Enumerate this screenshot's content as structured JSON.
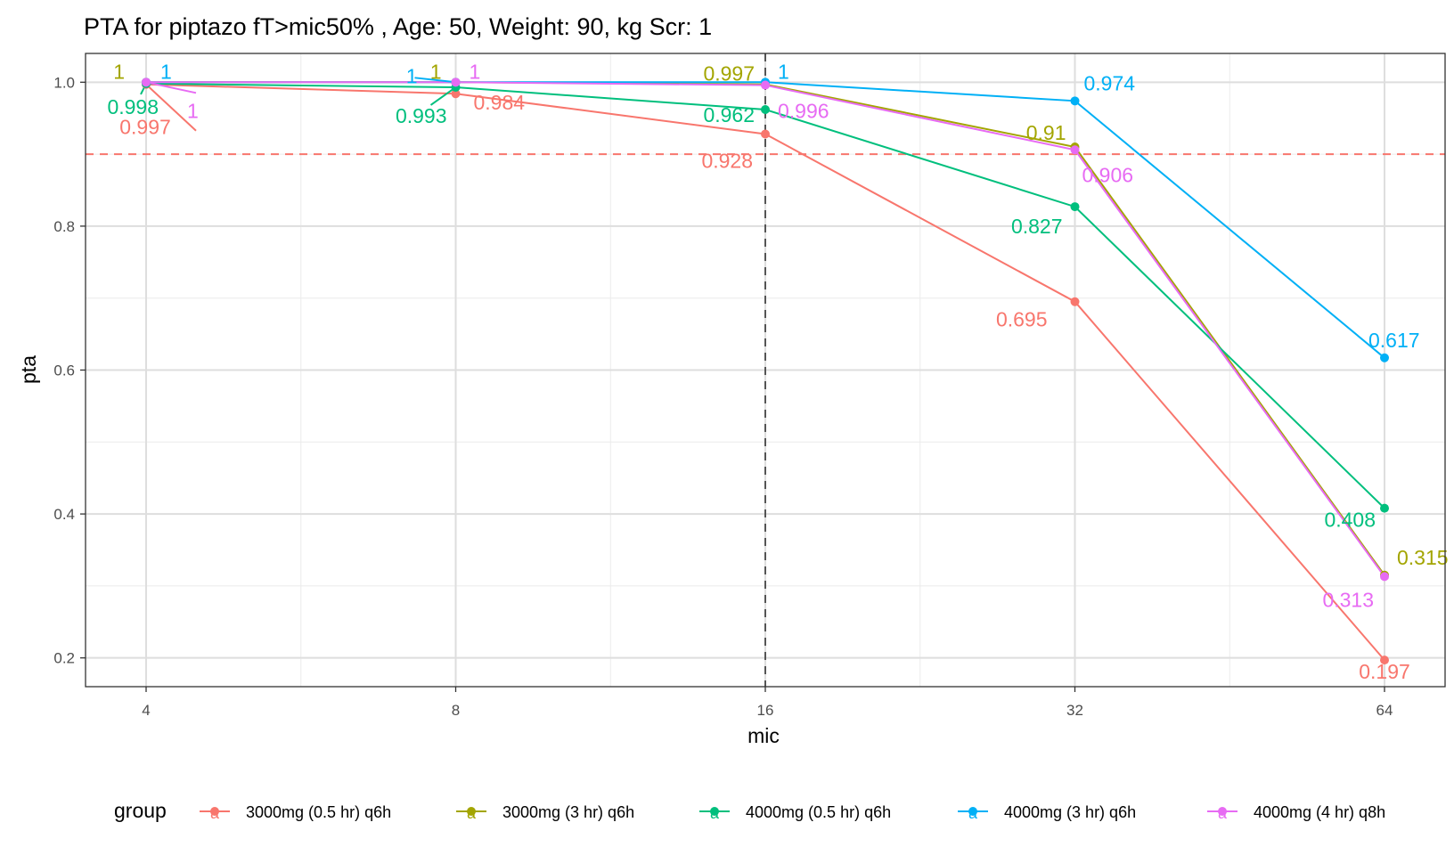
{
  "chart_data": {
    "type": "line",
    "title": "PTA for piptazo fT>mic50% , Age: 50, Weight: 90, kg Scr: 1",
    "xlabel": "mic",
    "ylabel": "pta",
    "x_scale": "log2",
    "x": [
      4,
      8,
      16,
      32,
      64
    ],
    "x_tick_labels": [
      "4",
      "8",
      "16",
      "32",
      "64"
    ],
    "ylim": [
      0.16,
      1.04
    ],
    "y_ticks": [
      0.2,
      0.4,
      0.6,
      0.8,
      1.0
    ],
    "y_tick_labels": [
      "0.2",
      "0.4",
      "0.6",
      "0.8",
      "1.0"
    ],
    "reference_lines": {
      "horizontal": {
        "value": 0.9,
        "color": "#F8766D",
        "style": "dashed"
      },
      "vertical": {
        "value": 16,
        "color": "#555555",
        "style": "dashed"
      }
    },
    "legend": {
      "title": "group",
      "position": "bottom",
      "key_glyph": "a"
    },
    "series": [
      {
        "name": "3000mg (0.5 hr) q6h",
        "color": "#F8766D",
        "values": [
          0.997,
          0.984,
          0.928,
          0.695,
          0.197
        ],
        "labels": [
          "0.997",
          "0.984",
          "0.928",
          "0.695",
          "0.197"
        ]
      },
      {
        "name": "3000mg (3 hr) q6h",
        "color": "#A3A500",
        "values": [
          1,
          1,
          0.997,
          0.91,
          0.315
        ],
        "labels": [
          "1",
          "1",
          "0.997",
          "0.91",
          "0.315"
        ]
      },
      {
        "name": "4000mg (0.5 hr) q6h",
        "color": "#00BF7D",
        "values": [
          0.998,
          0.993,
          0.962,
          0.827,
          0.408
        ],
        "labels": [
          "0.998",
          "0.993",
          "0.962",
          "0.827",
          "0.408"
        ]
      },
      {
        "name": "4000mg (3 hr) q6h",
        "color": "#00B0F6",
        "values": [
          1,
          1,
          1,
          0.974,
          0.617
        ],
        "labels": [
          "1",
          "1",
          "1",
          "0.974",
          "0.617"
        ]
      },
      {
        "name": "4000mg (4 hr) q8h",
        "color": "#E76BF3",
        "values": [
          1,
          1,
          0.996,
          0.906,
          0.313
        ],
        "labels": [
          "1",
          "1",
          "0.996",
          "0.906",
          "0.313"
        ]
      }
    ]
  }
}
